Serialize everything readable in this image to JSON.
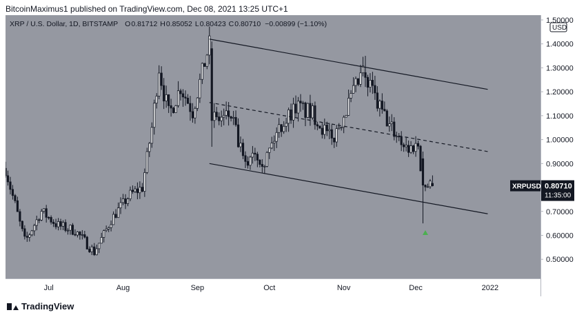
{
  "header": {
    "publisher_line": "BitcoinMaximus1 published on TradingView.com, Dec 08, 2021 13:25 UTC+1"
  },
  "footer": {
    "brand": "TradingView"
  },
  "colors": {
    "plot_bg": "#9598a1",
    "axis_bg": "#ffffff",
    "candle_up": "#ffffff",
    "candle_down": "#131722",
    "wick": "#131722",
    "trendline": "#131722",
    "marker": "#4caf50",
    "last_price_bg": "#131722"
  },
  "chart_data": {
    "type": "candlestick",
    "title": "XRP / U.S. Dollar, 1D, BITSTAMP",
    "ohlc_readout": {
      "o_label": "O",
      "o": "0.81712",
      "h_label": "H",
      "h": "0.85052",
      "l_label": "L",
      "l": "0.80423",
      "c_label": "C",
      "c": "0.80710",
      "change": "−0.00899 (−1.10%)"
    },
    "currency": "USD",
    "symbol": "XRPUSD",
    "last_price": "0.80710",
    "countdown": "11:35:00",
    "ylim": [
      0.42,
      1.52
    ],
    "y_ticks": [
      "1.50000",
      "1.40000",
      "1.30000",
      "1.20000",
      "1.10000",
      "1.00000",
      "0.90000",
      "0.80000",
      "0.70000",
      "0.60000",
      "0.50000"
    ],
    "x_range": [
      "2021-06-13",
      "2022-01-22"
    ],
    "x_ticks": [
      {
        "label": "Jul",
        "date": "2021-07-01"
      },
      {
        "label": "Aug",
        "date": "2021-08-01"
      },
      {
        "label": "Sep",
        "date": "2021-09-01"
      },
      {
        "label": "Oct",
        "date": "2021-10-01"
      },
      {
        "label": "Nov",
        "date": "2021-11-01"
      },
      {
        "label": "Dec",
        "date": "2021-12-01"
      },
      {
        "label": "2022",
        "date": "2022-01-01"
      }
    ],
    "anchors": [
      {
        "date": "2021-06-13",
        "close": 0.88
      },
      {
        "date": "2021-06-21",
        "close": 0.57
      },
      {
        "date": "2021-06-28",
        "close": 0.7
      },
      {
        "date": "2021-07-05",
        "close": 0.64
      },
      {
        "date": "2021-07-12",
        "close": 0.62
      },
      {
        "date": "2021-07-20",
        "close": 0.53
      },
      {
        "date": "2021-07-28",
        "close": 0.68
      },
      {
        "date": "2021-08-04",
        "close": 0.77
      },
      {
        "date": "2021-08-09",
        "close": 0.8
      },
      {
        "date": "2021-08-13",
        "close": 1.05
      },
      {
        "date": "2021-08-16",
        "close": 1.3
      },
      {
        "date": "2021-08-20",
        "close": 1.1
      },
      {
        "date": "2021-08-25",
        "close": 1.22
      },
      {
        "date": "2021-08-30",
        "close": 1.12
      },
      {
        "date": "2021-09-06",
        "close": 1.4
      },
      {
        "date": "2021-09-08",
        "close": 1.08
      },
      {
        "date": "2021-09-15",
        "close": 1.1
      },
      {
        "date": "2021-09-21",
        "close": 0.88
      },
      {
        "date": "2021-09-24",
        "close": 0.96
      },
      {
        "date": "2021-09-29",
        "close": 0.91
      },
      {
        "date": "2021-10-05",
        "close": 1.05
      },
      {
        "date": "2021-10-12",
        "close": 1.14
      },
      {
        "date": "2021-10-20",
        "close": 1.1
      },
      {
        "date": "2021-10-27",
        "close": 0.99
      },
      {
        "date": "2021-11-03",
        "close": 1.15
      },
      {
        "date": "2021-11-09",
        "close": 1.28
      },
      {
        "date": "2021-11-15",
        "close": 1.15
      },
      {
        "date": "2021-11-20",
        "close": 1.06
      },
      {
        "date": "2021-11-28",
        "close": 0.96
      },
      {
        "date": "2021-12-02",
        "close": 0.98
      },
      {
        "date": "2021-12-04",
        "close": 0.81
      },
      {
        "date": "2021-12-08",
        "close": 0.8071
      }
    ],
    "special_candles": [
      {
        "date": "2021-09-07",
        "open": 1.38,
        "high": 1.41,
        "low": 0.97,
        "close": 1.08
      },
      {
        "date": "2021-11-10",
        "open": 1.28,
        "high": 1.35,
        "low": 1.22,
        "close": 1.26
      },
      {
        "date": "2021-12-04",
        "open": 0.92,
        "high": 0.95,
        "low": 0.65,
        "close": 0.81
      },
      {
        "date": "2021-12-08",
        "open": 0.81712,
        "high": 0.85052,
        "low": 0.80423,
        "close": 0.8071
      }
    ],
    "trendlines": [
      {
        "name": "channel-upper",
        "style": "solid",
        "points": [
          [
            "2021-09-06",
            1.42
          ],
          [
            "2021-12-31",
            1.21
          ]
        ]
      },
      {
        "name": "channel-middle",
        "style": "dashed",
        "points": [
          [
            "2021-09-06",
            1.155
          ],
          [
            "2021-12-31",
            0.95
          ]
        ]
      },
      {
        "name": "channel-lower",
        "style": "solid",
        "points": [
          [
            "2021-09-06",
            0.9
          ],
          [
            "2021-12-31",
            0.69
          ]
        ]
      }
    ],
    "marker": {
      "date": "2021-12-05",
      "value": 0.61,
      "shape": "arrow-up"
    }
  }
}
